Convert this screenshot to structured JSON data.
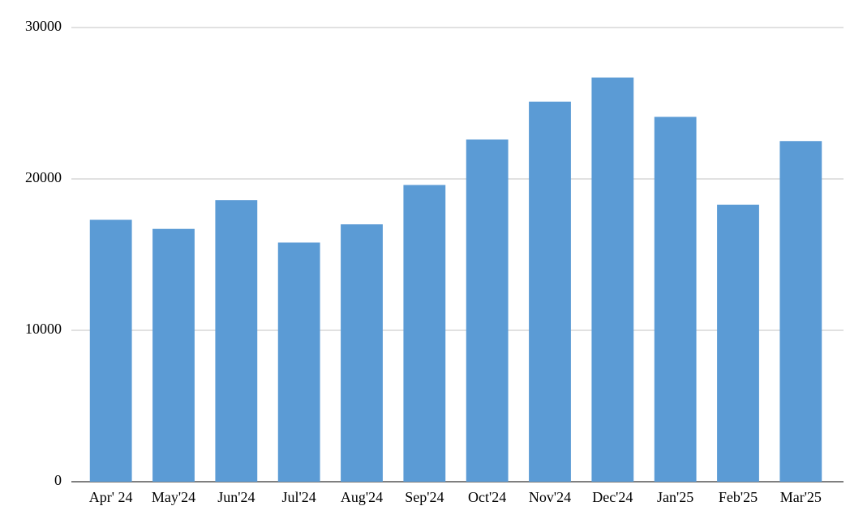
{
  "chart_data": {
    "type": "bar",
    "categories": [
      "Apr' 24",
      "May'24",
      "Jun'24",
      "Jul'24",
      "Aug'24",
      "Sep'24",
      "Oct'24",
      "Nov'24",
      "Dec'24",
      "Jan'25",
      "Feb'25",
      "Mar'25"
    ],
    "values": [
      17300,
      16700,
      18600,
      15800,
      17000,
      19600,
      22600,
      25100,
      26700,
      24100,
      18300,
      22500
    ],
    "color": "#5b9bd5",
    "ylim": [
      0,
      30000
    ],
    "yticks": [
      0,
      10000,
      20000,
      30000
    ],
    "grid": true
  }
}
